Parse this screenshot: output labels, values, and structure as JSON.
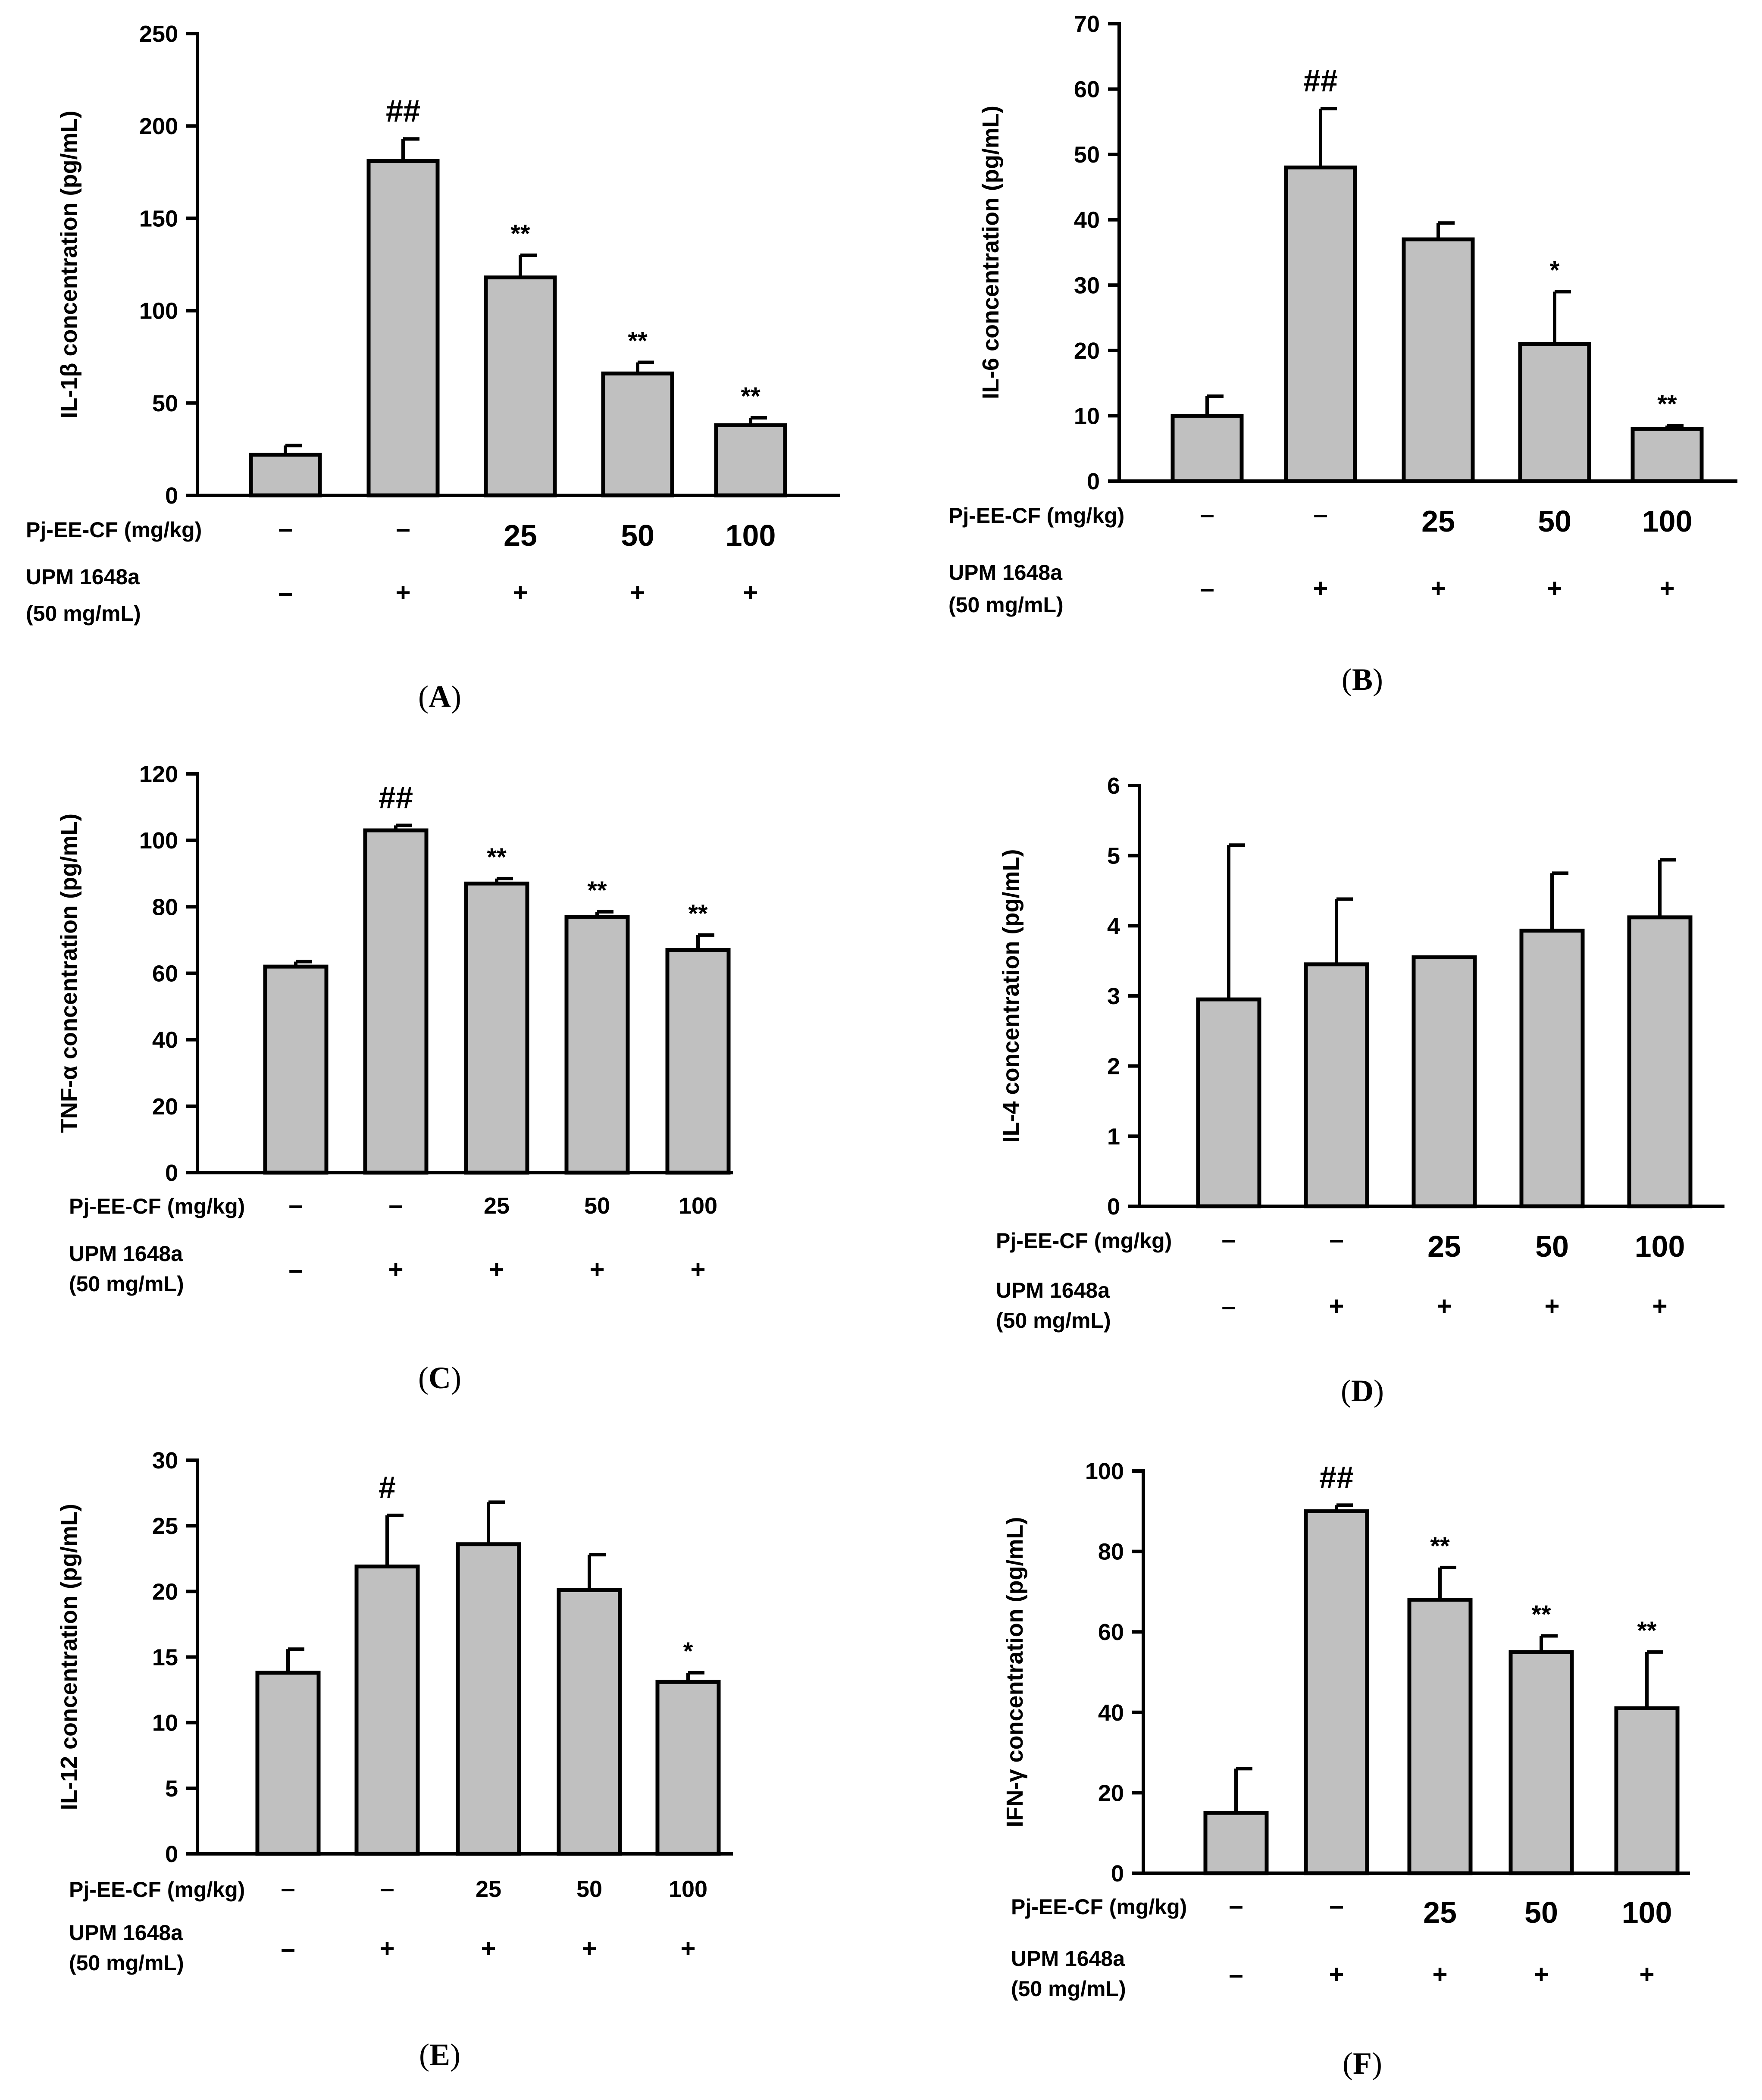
{
  "chart_data": [
    {
      "panel": "A",
      "type": "bar",
      "ylabel": "IL-1β  concentration (pg/mL)",
      "ylim": [
        0,
        250
      ],
      "yticks": [
        0,
        50,
        100,
        150,
        200,
        250
      ],
      "values": [
        22,
        181,
        118,
        66,
        38
      ],
      "errors": [
        5,
        12,
        12,
        6,
        4
      ],
      "significance": [
        "",
        "##",
        "**",
        "**",
        "**"
      ],
      "dose_label": "Pj-EE-CF (mg/kg)",
      "doses": [
        "–",
        "–",
        "25",
        "50",
        "100"
      ],
      "strain_label_1": "UPM 1648a",
      "strain_label_2": "(50 mg/mL)",
      "strain": [
        "–",
        "+",
        "+",
        "+",
        "+"
      ],
      "caption": "A"
    },
    {
      "panel": "B",
      "type": "bar",
      "ylabel": "IL-6  concentration (pg/mL)",
      "ylim": [
        0,
        70
      ],
      "yticks": [
        0,
        10,
        20,
        30,
        40,
        50,
        60,
        70
      ],
      "values": [
        10,
        48,
        37,
        21,
        8
      ],
      "errors": [
        3,
        9,
        2.5,
        8,
        0.5
      ],
      "significance": [
        "",
        "##",
        "",
        "*",
        "**"
      ],
      "dose_label": "Pj-EE-CF (mg/kg)",
      "doses": [
        "–",
        "–",
        "25",
        "50",
        "100"
      ],
      "strain_label_1": "UPM 1648a",
      "strain_label_2": "(50 mg/mL)",
      "strain": [
        "–",
        "+",
        "+",
        "+",
        "+"
      ],
      "caption": "B"
    },
    {
      "panel": "C",
      "type": "bar",
      "ylabel": "TNF-α  concentration (pg/mL)",
      "ylim": [
        0,
        120
      ],
      "yticks": [
        0,
        20,
        40,
        60,
        80,
        100,
        120
      ],
      "values": [
        62,
        103,
        87,
        77,
        67
      ],
      "errors": [
        1.5,
        1.5,
        1.5,
        1.5,
        4.5
      ],
      "significance": [
        "",
        "##",
        "**",
        "**",
        "**"
      ],
      "dose_label": "Pj-EE-CF (mg/kg)",
      "doses": [
        "–",
        "–",
        "25",
        "50",
        "100"
      ],
      "strain_label_1": "UPM 1648a",
      "strain_label_2": "(50 mg/mL)",
      "strain": [
        "–",
        "+",
        "+",
        "+",
        "+"
      ],
      "caption": "C"
    },
    {
      "panel": "D",
      "type": "bar",
      "ylabel": "IL-4  concentration (pg/mL)",
      "ylim": [
        0,
        6
      ],
      "yticks": [
        0,
        1,
        2,
        3,
        4,
        5,
        6
      ],
      "values": [
        2.95,
        3.45,
        3.55,
        3.93,
        4.12
      ],
      "errors": [
        2.2,
        0.93,
        0,
        0.82,
        0.82
      ],
      "significance": [
        "",
        "",
        "",
        "",
        ""
      ],
      "dose_label": "Pj-EE-CF (mg/kg)",
      "doses": [
        "–",
        "–",
        "25",
        "50",
        "100"
      ],
      "strain_label_1": "UPM 1648a",
      "strain_label_2": "(50 mg/mL)",
      "strain": [
        "–",
        "+",
        "+",
        "+",
        "+"
      ],
      "caption": "D"
    },
    {
      "panel": "E",
      "type": "bar",
      "ylabel": "IL-12  concentration (pg/mL)",
      "ylim": [
        0,
        30
      ],
      "yticks": [
        0,
        5,
        10,
        15,
        20,
        25,
        30
      ],
      "values": [
        13.8,
        21.9,
        23.6,
        20.1,
        13.1
      ],
      "errors": [
        1.8,
        3.9,
        3.2,
        2.7,
        0.7
      ],
      "significance": [
        "",
        "#",
        "",
        "",
        "*"
      ],
      "dose_label": "Pj-EE-CF (mg/kg)",
      "doses": [
        "–",
        "–",
        "25",
        "50",
        "100"
      ],
      "strain_label_1": "UPM 1648a",
      "strain_label_2": "(50 mg/mL)",
      "strain": [
        "–",
        "+",
        "+",
        "+",
        "+"
      ],
      "caption": "E"
    },
    {
      "panel": "F",
      "type": "bar",
      "ylabel": "IFN-γ  concentration (pg/mL)",
      "ylim": [
        0,
        100
      ],
      "yticks": [
        0,
        20,
        40,
        60,
        80,
        100
      ],
      "values": [
        15,
        90,
        68,
        55,
        41
      ],
      "errors": [
        11,
        1.5,
        8,
        4,
        14
      ],
      "significance": [
        "",
        "##",
        "**",
        "**",
        "**"
      ],
      "dose_label": "Pj-EE-CF (mg/kg)",
      "doses": [
        "–",
        "–",
        "25",
        "50",
        "100"
      ],
      "strain_label_1": "UPM 1648a",
      "strain_label_2": "(50 mg/mL)",
      "strain": [
        "–",
        "+",
        "+",
        "+",
        "+"
      ],
      "caption": "F"
    }
  ]
}
